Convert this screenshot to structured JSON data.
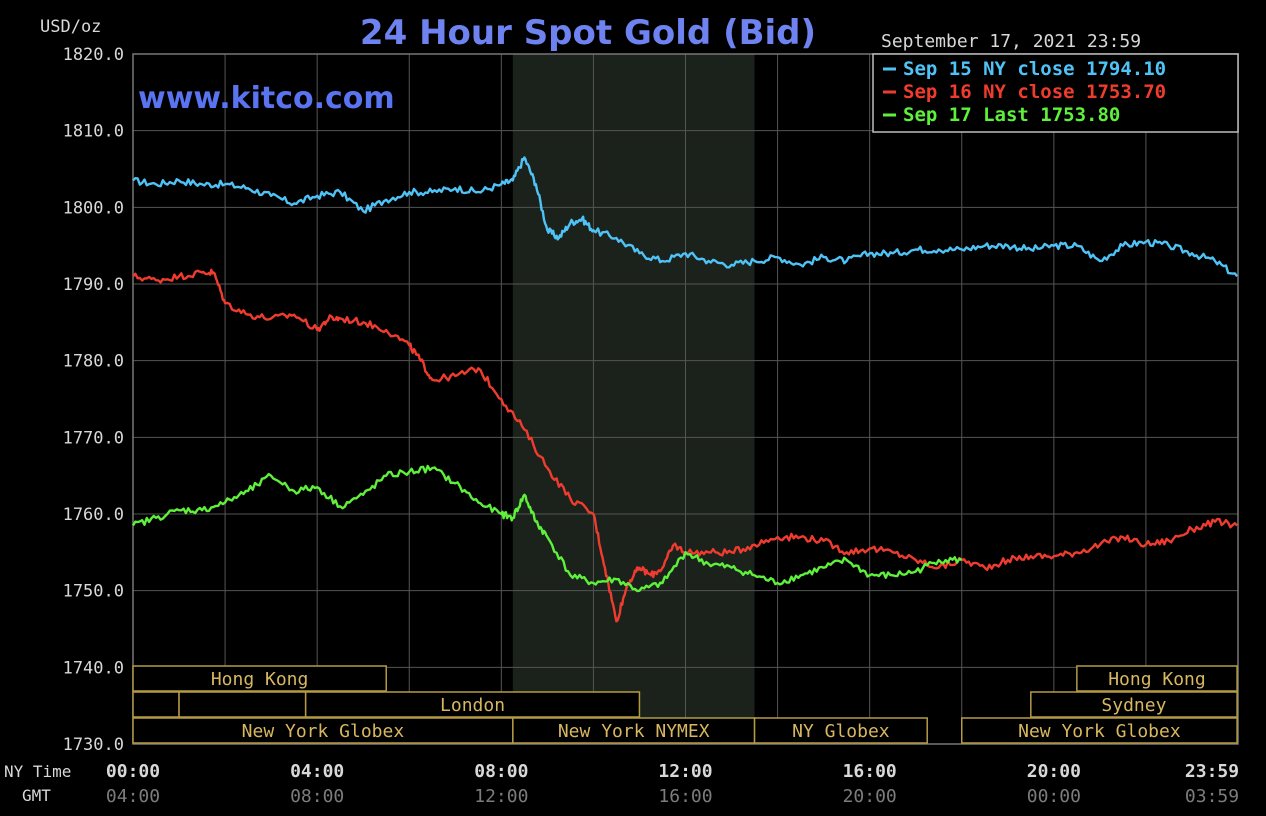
{
  "chart_data": {
    "type": "line",
    "title": "24 Hour Spot Gold (Bid)",
    "watermark": "www.kitco.com",
    "date_text": "September 17, 2021 23:59",
    "ylabel": "USD/oz",
    "ylim": [
      1730,
      1820
    ],
    "yticks": [
      "1820.0",
      "1810.0",
      "1800.0",
      "1790.0",
      "1780.0",
      "1770.0",
      "1760.0",
      "1750.0",
      "1740.0",
      "1730.0"
    ],
    "xlim_hours": [
      0,
      24
    ],
    "ny_time_label": "NY Time",
    "gmt_label": "GMT",
    "ny_ticks": [
      "00:00",
      "04:00",
      "08:00",
      "12:00",
      "16:00",
      "20:00",
      "23:59"
    ],
    "gmt_ticks": [
      "04:00",
      "08:00",
      "12:00",
      "16:00",
      "20:00",
      "00:00",
      "03:59"
    ],
    "grid": true,
    "legend_position": "top-right",
    "shaded_region_hours": [
      8.25,
      13.5
    ],
    "colors": {
      "background": "#000000",
      "grid": "#555555",
      "shade": "#1b211b",
      "title": "#6e83f0",
      "watermark": "#5a73f0",
      "axis_text": "#d8d8d8",
      "gmt_text": "#7c7c7c",
      "session_border": "#b59a44",
      "session_text": "#d7b860"
    },
    "series": [
      {
        "name": "Sep 15 NY close 1794.10",
        "color": "#4fc3f7",
        "points": [
          [
            0,
            1803.5
          ],
          [
            0.5,
            1803
          ],
          [
            1,
            1803.5
          ],
          [
            1.5,
            1803
          ],
          [
            2,
            1803
          ],
          [
            2.5,
            1802.5
          ],
          [
            3,
            1801.5
          ],
          [
            3.5,
            1800.5
          ],
          [
            4,
            1801.5
          ],
          [
            4.5,
            1802
          ],
          [
            5,
            1799.5
          ],
          [
            5.5,
            1801
          ],
          [
            6,
            1802
          ],
          [
            6.5,
            1802
          ],
          [
            7,
            1802.5
          ],
          [
            7.5,
            1802
          ],
          [
            8,
            1803
          ],
          [
            8.25,
            1803.5
          ],
          [
            8.5,
            1806.5
          ],
          [
            8.75,
            1803
          ],
          [
            9,
            1797
          ],
          [
            9.25,
            1796
          ],
          [
            9.5,
            1798
          ],
          [
            9.75,
            1798.5
          ],
          [
            10,
            1797
          ],
          [
            10.5,
            1796
          ],
          [
            11,
            1794
          ],
          [
            11.5,
            1793
          ],
          [
            12,
            1794
          ],
          [
            12.5,
            1793
          ],
          [
            13,
            1792.5
          ],
          [
            13.5,
            1793
          ],
          [
            14,
            1793.5
          ],
          [
            14.5,
            1792.5
          ],
          [
            15,
            1793.5
          ],
          [
            15.5,
            1793
          ],
          [
            16,
            1794
          ],
          [
            16.5,
            1794
          ],
          [
            17,
            1794.5
          ],
          [
            17.5,
            1794.5
          ],
          [
            18,
            1794.5
          ],
          [
            18.5,
            1795
          ],
          [
            19,
            1795
          ],
          [
            19.5,
            1794.5
          ],
          [
            20,
            1795
          ],
          [
            20.5,
            1795
          ],
          [
            21,
            1793
          ],
          [
            21.5,
            1795
          ],
          [
            22,
            1795.5
          ],
          [
            22.5,
            1795
          ],
          [
            23,
            1794
          ],
          [
            23.5,
            1793
          ],
          [
            23.98,
            1791
          ]
        ]
      },
      {
        "name": "Sep 16 NY close 1753.70",
        "color": "#f03c2e",
        "points": [
          [
            0,
            1791
          ],
          [
            0.5,
            1790.5
          ],
          [
            1,
            1791
          ],
          [
            1.5,
            1791.5
          ],
          [
            1.75,
            1791.5
          ],
          [
            2,
            1787.5
          ],
          [
            2.5,
            1786
          ],
          [
            3,
            1785.5
          ],
          [
            3.5,
            1786
          ],
          [
            4,
            1784
          ],
          [
            4.25,
            1785.5
          ],
          [
            4.5,
            1785.5
          ],
          [
            5,
            1785
          ],
          [
            5.5,
            1784
          ],
          [
            6,
            1782
          ],
          [
            6.25,
            1780
          ],
          [
            6.5,
            1777.5
          ],
          [
            7,
            1778
          ],
          [
            7.5,
            1779
          ],
          [
            8,
            1775
          ],
          [
            8.5,
            1771
          ],
          [
            9,
            1766
          ],
          [
            9.5,
            1762
          ],
          [
            10,
            1760
          ],
          [
            10.25,
            1753
          ],
          [
            10.5,
            1746
          ],
          [
            10.75,
            1751
          ],
          [
            11,
            1753
          ],
          [
            11.25,
            1752
          ],
          [
            11.5,
            1753
          ],
          [
            11.75,
            1756
          ],
          [
            12,
            1755
          ],
          [
            12.5,
            1755
          ],
          [
            13,
            1755
          ],
          [
            13.5,
            1756
          ],
          [
            14,
            1757
          ],
          [
            14.5,
            1757
          ],
          [
            15,
            1756.5
          ],
          [
            15.5,
            1755
          ],
          [
            16,
            1755.5
          ],
          [
            16.5,
            1755
          ],
          [
            17,
            1754
          ],
          [
            17.5,
            1753
          ],
          [
            18,
            1754
          ],
          [
            18.5,
            1753
          ],
          [
            19,
            1754
          ],
          [
            19.5,
            1754.5
          ],
          [
            20,
            1754.5
          ],
          [
            20.5,
            1755
          ],
          [
            21,
            1756
          ],
          [
            21.5,
            1757
          ],
          [
            22,
            1756
          ],
          [
            22.5,
            1756.5
          ],
          [
            23,
            1758
          ],
          [
            23.5,
            1759
          ],
          [
            23.98,
            1758.5
          ]
        ]
      },
      {
        "name": "Sep 17 Last 1753.80",
        "color": "#5ef03a",
        "points": [
          [
            0,
            1758.5
          ],
          [
            0.5,
            1759.5
          ],
          [
            1,
            1760.5
          ],
          [
            1.5,
            1760.5
          ],
          [
            2,
            1761.5
          ],
          [
            2.5,
            1763
          ],
          [
            3,
            1765
          ],
          [
            3.5,
            1763
          ],
          [
            4,
            1763.5
          ],
          [
            4.5,
            1761
          ],
          [
            5,
            1762.5
          ],
          [
            5.5,
            1765
          ],
          [
            6,
            1765.5
          ],
          [
            6.5,
            1766
          ],
          [
            7,
            1764
          ],
          [
            7.5,
            1761.5
          ],
          [
            8,
            1760
          ],
          [
            8.25,
            1759.5
          ],
          [
            8.5,
            1762.5
          ],
          [
            8.75,
            1759
          ],
          [
            9,
            1757
          ],
          [
            9.5,
            1752
          ],
          [
            10,
            1751
          ],
          [
            10.5,
            1751.5
          ],
          [
            11,
            1750
          ],
          [
            11.5,
            1751
          ],
          [
            12,
            1755
          ],
          [
            12.5,
            1753.5
          ],
          [
            13,
            1753
          ],
          [
            13.5,
            1752
          ],
          [
            14,
            1751
          ],
          [
            14.5,
            1752
          ],
          [
            15,
            1753
          ],
          [
            15.5,
            1754
          ],
          [
            16,
            1752
          ],
          [
            16.5,
            1752
          ],
          [
            17,
            1752.5
          ],
          [
            17.5,
            1754
          ],
          [
            18,
            1754
          ]
        ]
      }
    ],
    "sessions": [
      {
        "label": "Hong Kong",
        "row": 0,
        "start": 0,
        "end": 5.5
      },
      {
        "label": "",
        "row": 1,
        "start": 0,
        "end": 1
      },
      {
        "label": "",
        "row": 1,
        "start": 1,
        "end": 3.75
      },
      {
        "label": "London",
        "row": 1,
        "start": 3.75,
        "end": 11
      },
      {
        "label": "New York Globex",
        "row": 2,
        "start": 0,
        "end": 8.25
      },
      {
        "label": "New York NYMEX",
        "row": 2,
        "start": 8.25,
        "end": 13.5
      },
      {
        "label": "NY Globex",
        "row": 2,
        "start": 13.5,
        "end": 17.25
      },
      {
        "label": "Hong Kong",
        "row": 0,
        "start": 20.5,
        "end": 23.98
      },
      {
        "label": "Sydney",
        "row": 1,
        "start": 19.5,
        "end": 23.98
      },
      {
        "label": "New York Globex",
        "row": 2,
        "start": 18,
        "end": 23.98
      }
    ]
  }
}
